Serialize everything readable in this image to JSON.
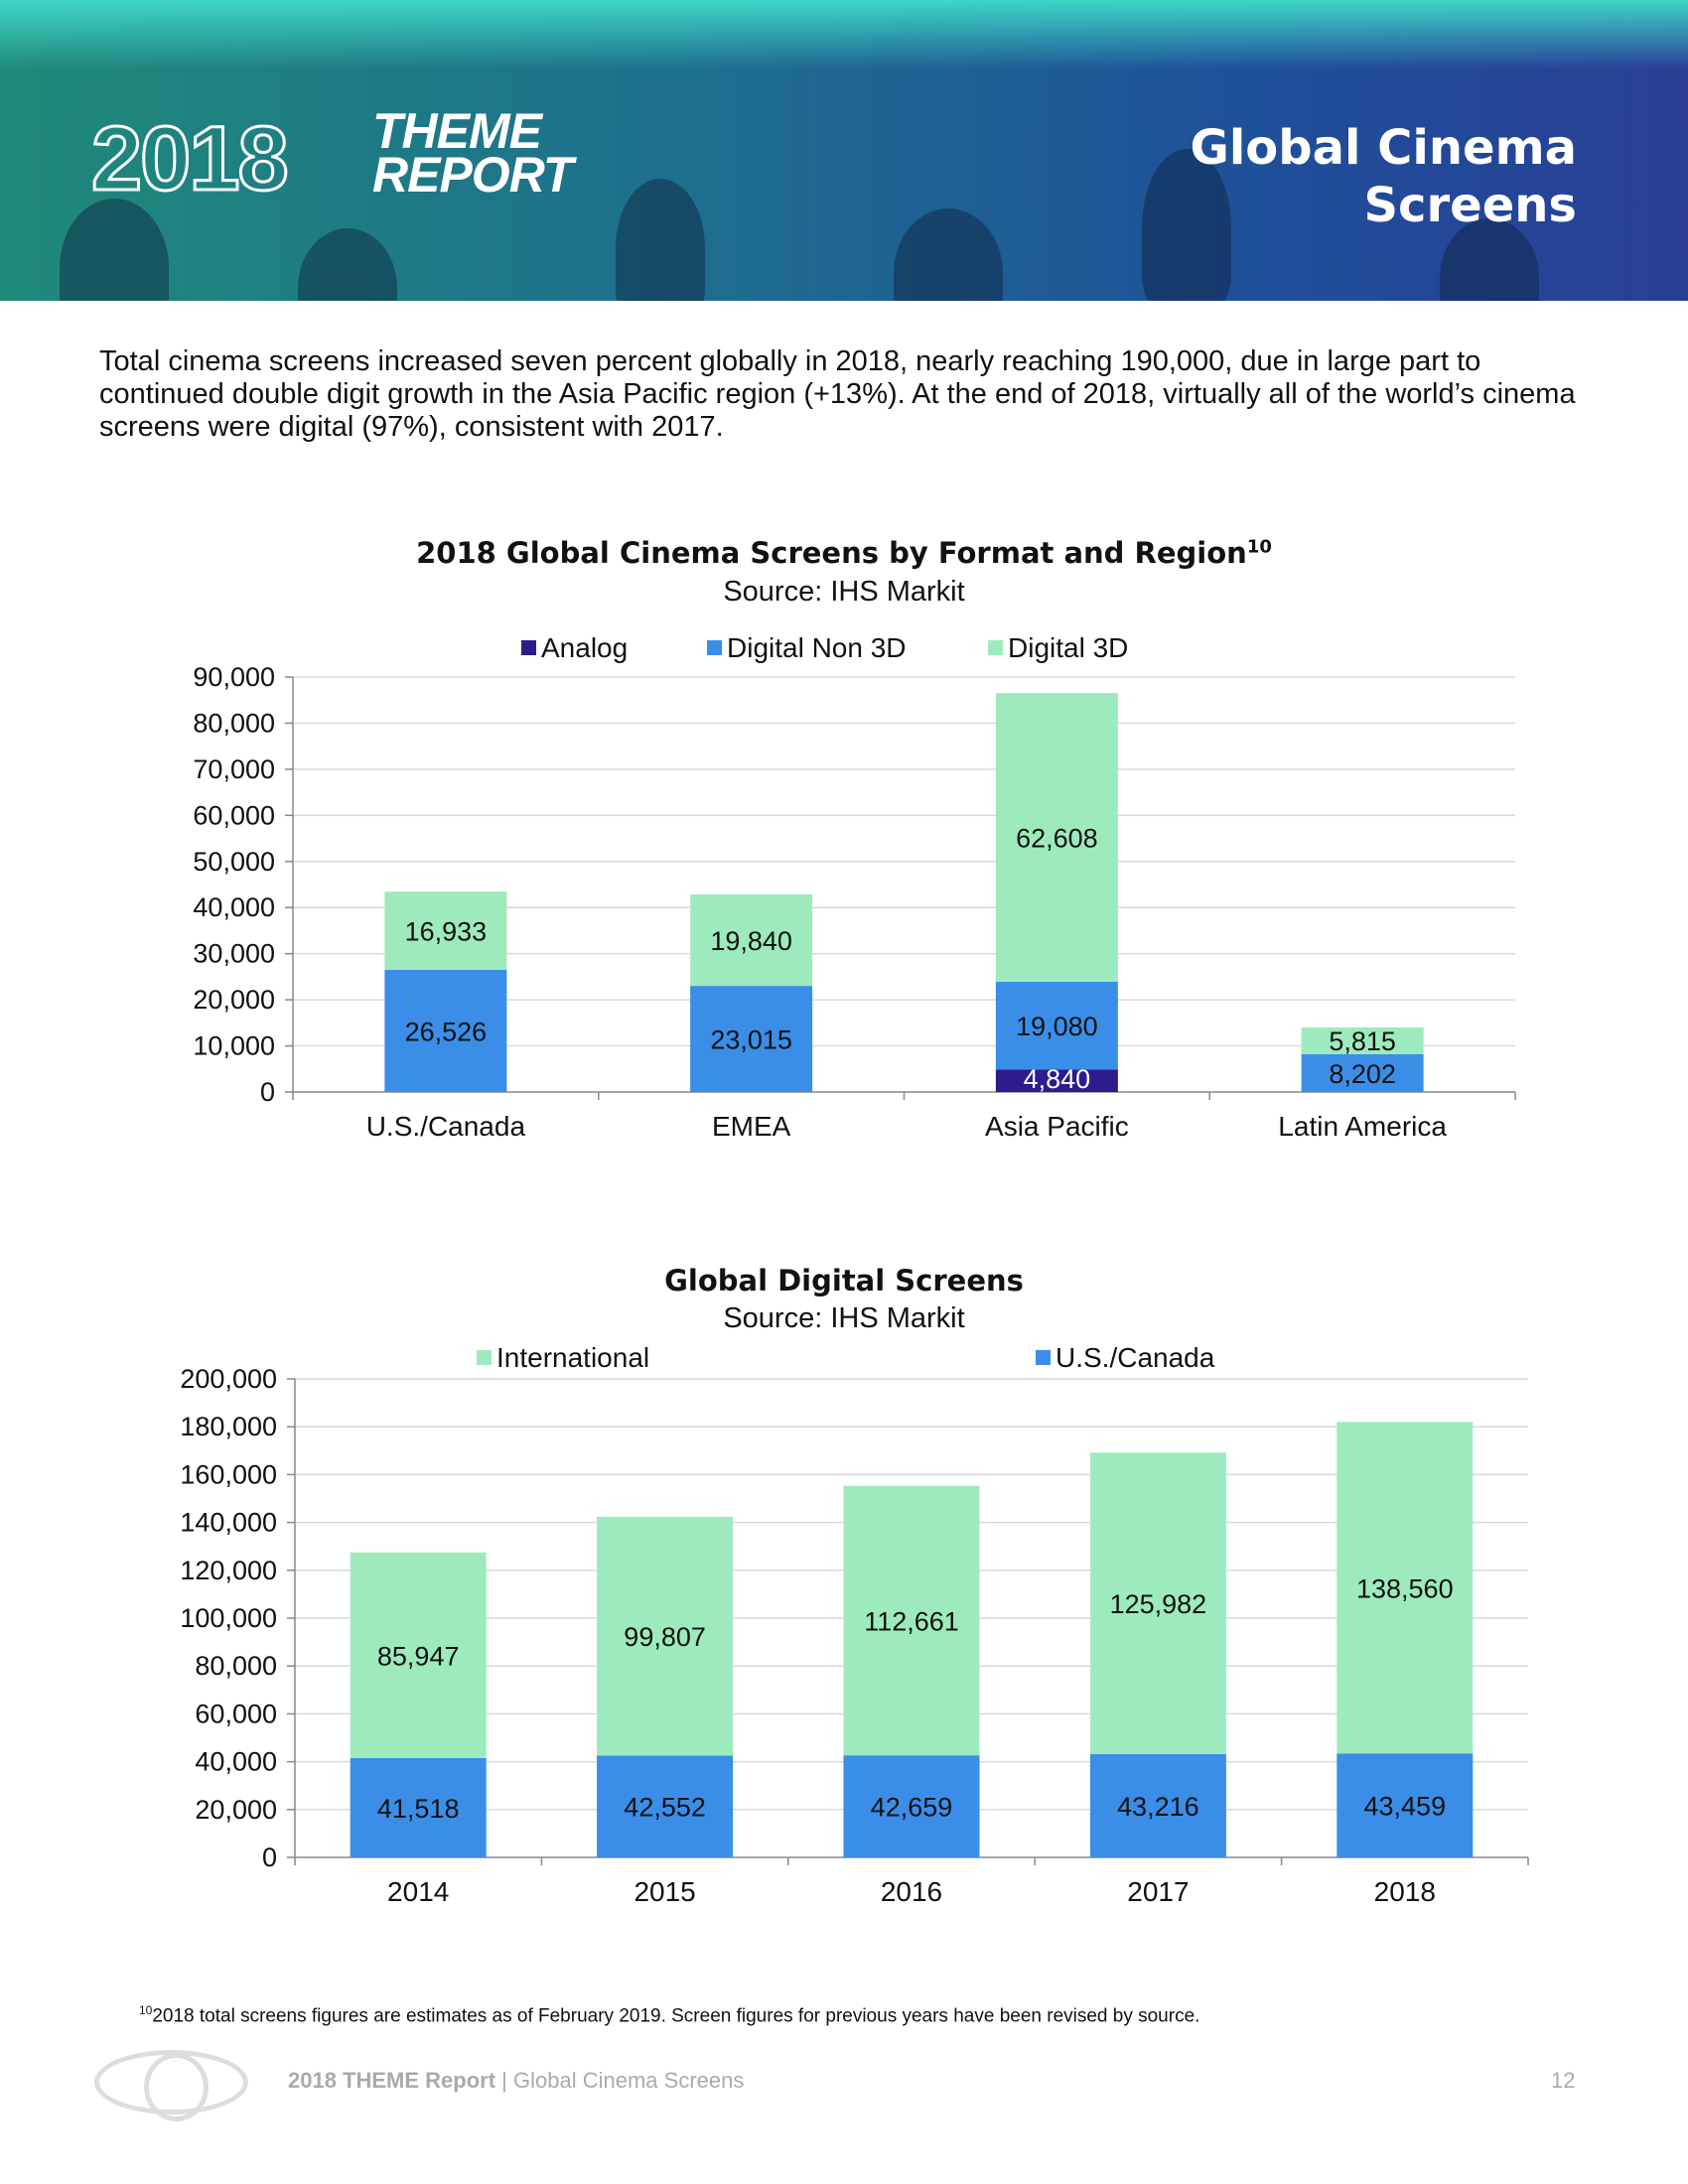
{
  "header": {
    "logo_year": "2018",
    "logo_word1": "THEME",
    "logo_word2": "REPORT",
    "title_line1": "Global Cinema",
    "title_line2": "Screens"
  },
  "intro": "Total cinema screens increased seven percent globally in 2018, nearly reaching 190,000, due in large part to continued double digit growth in the Asia Pacific region (+13%). At the end of 2018, virtually all of the world’s cinema screens were digital (97%), consistent with 2017.",
  "chart_data": [
    {
      "type": "bar",
      "stacked": true,
      "title": "2018 Global Cinema Screens by Format and Region",
      "title_sup": "10",
      "subtitle": "Source: IHS Markit",
      "categories": [
        "U.S./Canada",
        "EMEA",
        "Asia Pacific",
        "Latin America"
      ],
      "series": [
        {
          "name": "Analog",
          "color": "#2f1b8c",
          "values": [
            0,
            0,
            4840,
            0
          ],
          "labels": [
            "",
            "",
            "4,840",
            ""
          ]
        },
        {
          "name": "Digital Non 3D",
          "color": "#3a8ee8",
          "values": [
            26526,
            23015,
            19080,
            8202
          ],
          "labels": [
            "26,526",
            "23,015",
            "19,080",
            "8,202"
          ]
        },
        {
          "name": "Digital 3D",
          "color": "#9debbd",
          "values": [
            16933,
            19840,
            62608,
            5815
          ],
          "labels": [
            "16,933",
            "19,840",
            "62,608",
            "5,815"
          ]
        }
      ],
      "ylim": [
        0,
        90000
      ],
      "yticks": [
        "0",
        "10,000",
        "20,000",
        "30,000",
        "40,000",
        "50,000",
        "60,000",
        "70,000",
        "80,000",
        "90,000"
      ],
      "ystep": 10000,
      "grid": true,
      "legend": "top"
    },
    {
      "type": "bar",
      "stacked": true,
      "title": "Global Digital Screens",
      "subtitle": "Source: IHS Markit",
      "categories": [
        "2014",
        "2015",
        "2016",
        "2017",
        "2018"
      ],
      "series": [
        {
          "name": "U.S./Canada",
          "color": "#3a8ee8",
          "values": [
            41518,
            42552,
            42659,
            43216,
            43459
          ],
          "labels": [
            "41,518",
            "42,552",
            "42,659",
            "43,216",
            "43,459"
          ]
        },
        {
          "name": "International",
          "color": "#9debbd",
          "values": [
            85947,
            99807,
            112661,
            125982,
            138560
          ],
          "labels": [
            "85,947",
            "99,807",
            "112,661",
            "125,982",
            "138,560"
          ]
        }
      ],
      "legend_order": [
        "International",
        "U.S./Canada"
      ],
      "ylim": [
        0,
        200000
      ],
      "yticks": [
        "0",
        "20,000",
        "40,000",
        "60,000",
        "80,000",
        "100,000",
        "120,000",
        "140,000",
        "160,000",
        "180,000",
        "200,000"
      ],
      "ystep": 20000,
      "grid": true,
      "legend": "top"
    }
  ],
  "footnote": {
    "sup": "10",
    "text": "2018 total screens figures are estimates as of February 2019. Screen figures for previous years have been revised by source."
  },
  "footer": {
    "report": "2018 THEME Report",
    "separator": " | ",
    "section": "Global Cinema Screens",
    "page": "12"
  }
}
